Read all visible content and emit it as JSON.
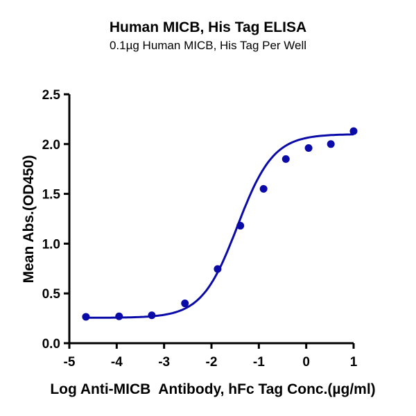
{
  "header": {
    "title": "Human MICB, His Tag ELISA",
    "subtitle": "0.1µg Human MICB, His Tag Per Well"
  },
  "chart_data": {
    "type": "scatter",
    "title": "Human MICB, His Tag ELISA",
    "subtitle": "0.1µg Human MICB, His Tag Per Well",
    "xlabel": "Log Anti-MICB  Antibody, hFc Tag Conc.(µg/ml)",
    "ylabel": "Mean Abs.(OD450)",
    "xlim": [
      -5,
      1
    ],
    "ylim": [
      0,
      2.5
    ],
    "xticks": [
      "-5",
      "-4",
      "-3",
      "-2",
      "-1",
      "0",
      "1"
    ],
    "yticks": [
      "0.0",
      "0.5",
      "1.0",
      "1.5",
      "2.0",
      "2.5"
    ],
    "grid": false,
    "legend": null,
    "series": [
      {
        "name": "Mean Abs.(OD450)",
        "color": "#0a0aa8",
        "x": [
          -4.65,
          -3.95,
          -3.26,
          -2.56,
          -1.87,
          -1.39,
          -0.9,
          -0.43,
          0.05,
          0.52,
          1.0
        ],
        "y": [
          0.265,
          0.27,
          0.28,
          0.4,
          0.745,
          1.18,
          1.55,
          1.85,
          1.96,
          2.0,
          2.13
        ],
        "fit": "4PL sigmoid"
      }
    ],
    "fit_curve": {
      "bottom": 0.255,
      "top": 2.1,
      "logEC50": -1.45,
      "hill": 1.15
    }
  }
}
